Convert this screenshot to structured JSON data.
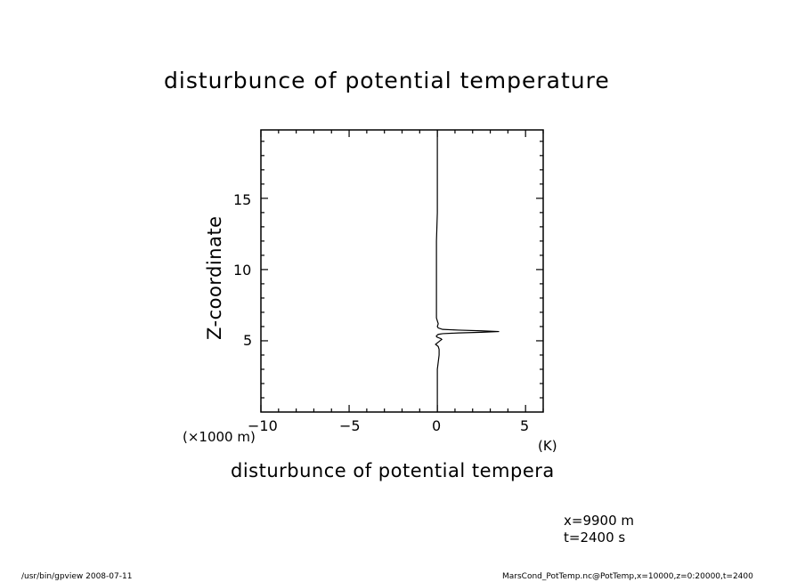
{
  "chart_data": {
    "type": "line",
    "title": "disturbunce of potential temperature",
    "xlabel": "disturbunce of potential tempera",
    "ylabel": "Z-coordinate",
    "x_unit": "(K)",
    "y_unit": "(×1000 m)",
    "xlim": [
      -10,
      6
    ],
    "ylim": [
      0,
      19.8
    ],
    "x_ticks": [
      -10,
      -5,
      0,
      5
    ],
    "y_ticks": [
      5,
      10,
      15
    ],
    "grid": false,
    "series": [
      {
        "x": [
          0,
          0,
          0.05,
          0.1,
          0.1,
          0.05,
          -0.05,
          -0.1,
          -0.05,
          0.05,
          0.15,
          0.25,
          0.2,
          0.1,
          0,
          -0.05,
          -0.05,
          0,
          0.05,
          0.3,
          1.2,
          2.5,
          3.5,
          2.5,
          1.2,
          0.3,
          0.05,
          0,
          0.05,
          0,
          -0.05,
          -0.05,
          0,
          0,
          0,
          0
        ],
        "y": [
          0,
          3.0,
          3.5,
          4.0,
          4.4,
          4.6,
          4.7,
          4.75,
          4.8,
          4.9,
          5.0,
          5.1,
          5.15,
          5.2,
          5.25,
          5.3,
          5.35,
          5.4,
          5.45,
          5.5,
          5.55,
          5.6,
          5.65,
          5.7,
          5.75,
          5.8,
          5.9,
          6.0,
          6.2,
          6.4,
          6.6,
          12.0,
          14.0,
          15.0,
          16.5,
          19.8
        ]
      }
    ]
  },
  "info": {
    "x_value": "x=9900  m",
    "t_value": "t=2400  s"
  },
  "footer": {
    "left": "/usr/bin/gpview   2008-07-11",
    "right": "MarsCond_PotTemp.nc@PotTemp,x=10000,z=0:20000,t=2400"
  }
}
